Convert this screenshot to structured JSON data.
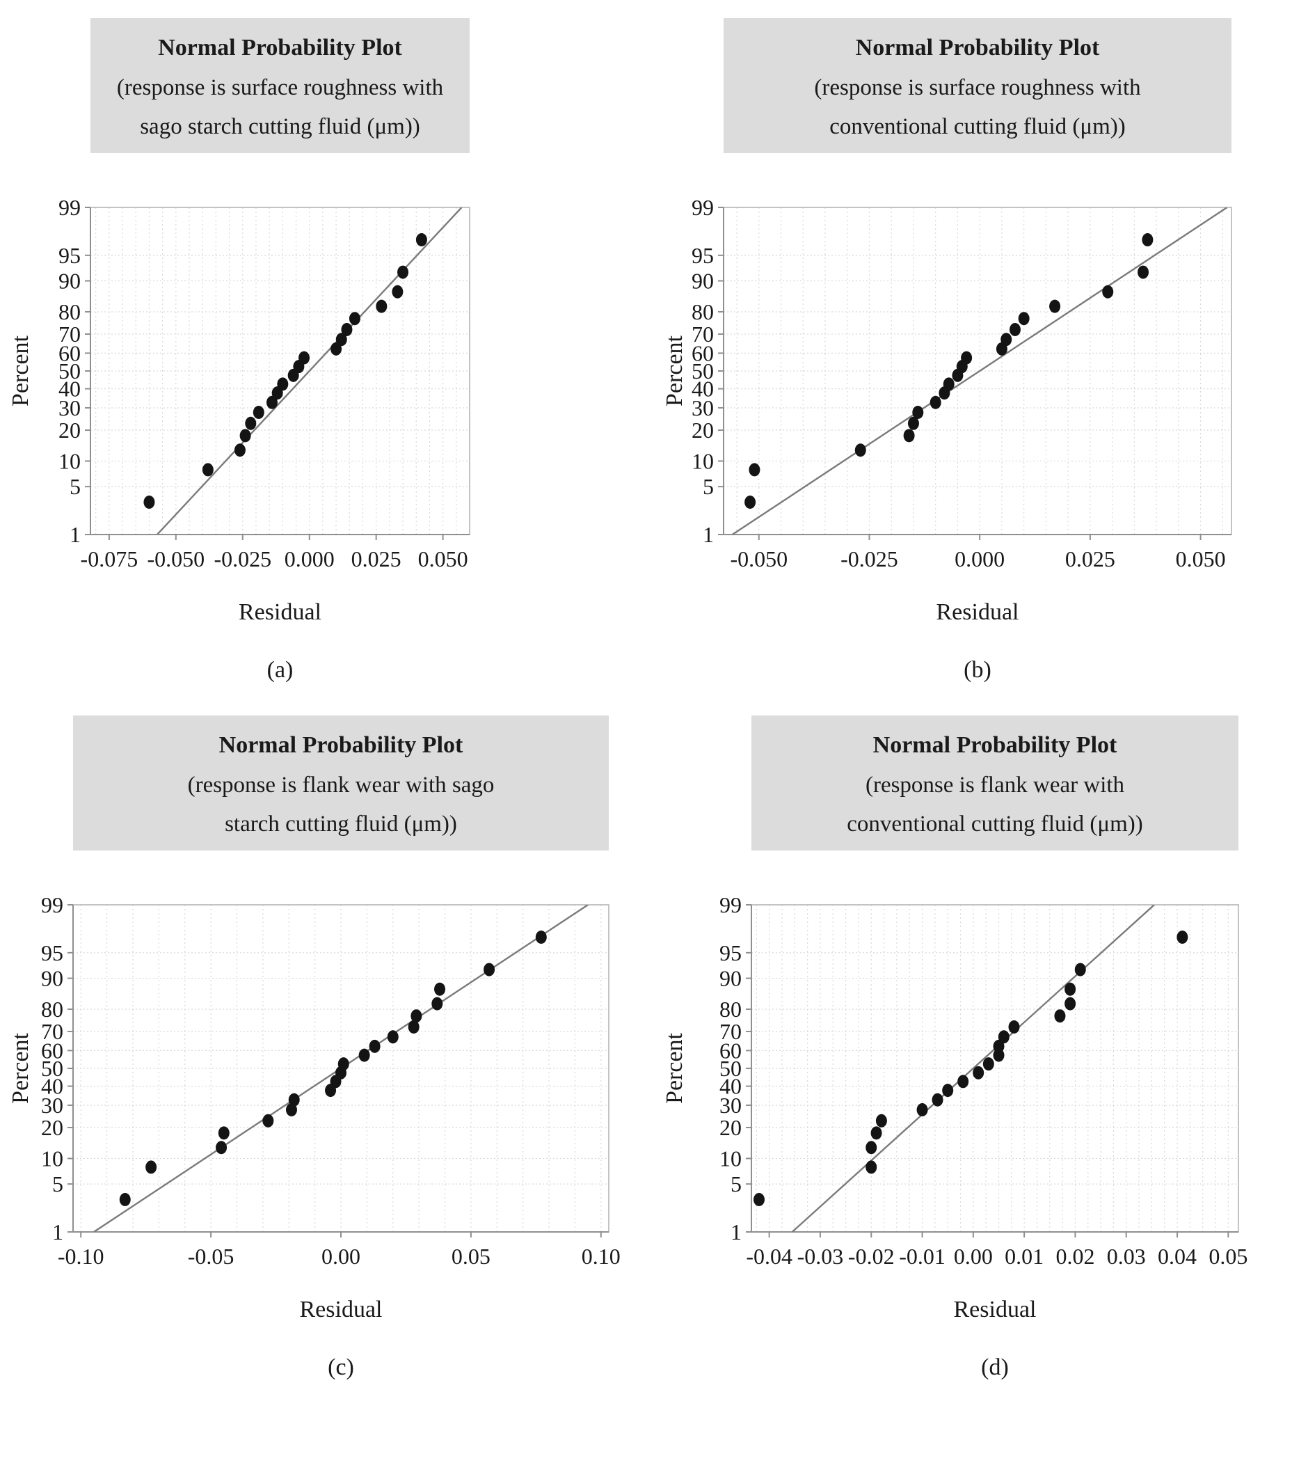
{
  "figure": {
    "type_note": "2x2 grid of Minitab-style normal probability plots of residuals",
    "ylabel": "Percent",
    "xlabel": "Residual",
    "colors": {
      "title_box_bg": "#dcdcdc",
      "plot_border": "#b5b5b5",
      "axis_line": "#8f8f8f",
      "gridline": "#d9d9d9",
      "fit_line": "#7a7a7a",
      "point": "#141414",
      "text": "#1a1a1a"
    }
  },
  "chart_data": [
    {
      "type": "scatter",
      "panel_label": "(a)",
      "title": "Normal Probability Plot",
      "subtitle": "(response is surface roughness with sago starch cutting fluid (μm))",
      "subtitle_lines": [
        "(response is surface roughness with",
        "sago starch cutting fluid (μm))"
      ],
      "xlabel": "Residual",
      "ylabel": "Percent",
      "y_scale": "normal-probability",
      "y_ticks": [
        1,
        5,
        10,
        20,
        30,
        40,
        50,
        60,
        70,
        80,
        90,
        95,
        99
      ],
      "xlim": [
        -0.082,
        0.06
      ],
      "x_ticks": [
        -0.075,
        -0.05,
        -0.025,
        0.0,
        0.025,
        0.05
      ],
      "x_tick_labels": [
        "-0.075",
        "-0.050",
        "-0.025",
        "0.000",
        "0.025",
        "0.050"
      ],
      "x_minor_step": 0.005,
      "grid": true,
      "legend": false,
      "fit_line": {
        "x_at_p1": -0.057,
        "x_at_p99": 0.057
      },
      "points": [
        [
          -0.06,
          3.1
        ],
        [
          -0.038,
          8.0
        ],
        [
          -0.026,
          13.0
        ],
        [
          -0.024,
          17.9
        ],
        [
          -0.022,
          22.8
        ],
        [
          -0.019,
          27.8
        ],
        [
          -0.014,
          32.7
        ],
        [
          -0.012,
          37.7
        ],
        [
          -0.01,
          42.6
        ],
        [
          -0.006,
          47.5
        ],
        [
          -0.004,
          52.5
        ],
        [
          -0.002,
          57.4
        ],
        [
          0.01,
          62.3
        ],
        [
          0.012,
          67.3
        ],
        [
          0.014,
          72.2
        ],
        [
          0.017,
          77.2
        ],
        [
          0.027,
          82.1
        ],
        [
          0.033,
          87.0
        ],
        [
          0.035,
          92.0
        ],
        [
          0.042,
          96.9
        ]
      ]
    },
    {
      "type": "scatter",
      "panel_label": "(b)",
      "title": "Normal Probability Plot",
      "subtitle": "(response is surface roughness with conventional cutting fluid (μm))",
      "subtitle_lines": [
        "(response is surface roughness with",
        "conventional cutting fluid (μm))"
      ],
      "xlabel": "Residual",
      "ylabel": "Percent",
      "y_scale": "normal-probability",
      "y_ticks": [
        1,
        5,
        10,
        20,
        30,
        40,
        50,
        60,
        70,
        80,
        90,
        95,
        99
      ],
      "xlim": [
        -0.058,
        0.057
      ],
      "x_ticks": [
        -0.05,
        -0.025,
        0.0,
        0.025,
        0.05
      ],
      "x_tick_labels": [
        "-0.050",
        "-0.025",
        "0.000",
        "0.025",
        "0.050"
      ],
      "x_minor_step": 0.005,
      "grid": true,
      "legend": false,
      "fit_line": {
        "x_at_p1": -0.056,
        "x_at_p99": 0.056
      },
      "points": [
        [
          -0.052,
          3.1
        ],
        [
          -0.051,
          8.0
        ],
        [
          -0.027,
          13.0
        ],
        [
          -0.016,
          17.9
        ],
        [
          -0.015,
          22.8
        ],
        [
          -0.014,
          27.8
        ],
        [
          -0.01,
          32.7
        ],
        [
          -0.008,
          37.7
        ],
        [
          -0.007,
          42.6
        ],
        [
          -0.005,
          47.5
        ],
        [
          -0.004,
          52.5
        ],
        [
          -0.003,
          57.4
        ],
        [
          0.005,
          62.3
        ],
        [
          0.006,
          67.3
        ],
        [
          0.008,
          72.2
        ],
        [
          0.01,
          77.2
        ],
        [
          0.017,
          82.1
        ],
        [
          0.029,
          87.0
        ],
        [
          0.037,
          92.0
        ],
        [
          0.038,
          96.9
        ]
      ]
    },
    {
      "type": "scatter",
      "panel_label": "(c)",
      "title": "Normal Probability Plot",
      "subtitle": "(response is flank wear with sago starch cutting fluid (μm))",
      "subtitle_lines": [
        "(response is flank wear with sago",
        "starch cutting fluid (μm))"
      ],
      "xlabel": "Residual",
      "ylabel": "Percent",
      "y_scale": "normal-probability",
      "y_ticks": [
        1,
        5,
        10,
        20,
        30,
        40,
        50,
        60,
        70,
        80,
        90,
        95,
        99
      ],
      "xlim": [
        -0.103,
        0.103
      ],
      "x_ticks": [
        -0.1,
        -0.05,
        0.0,
        0.05,
        0.1
      ],
      "x_tick_labels": [
        "-0.10",
        "-0.05",
        "0.00",
        "0.05",
        "0.10"
      ],
      "x_minor_step": 0.01,
      "grid": true,
      "legend": false,
      "fit_line": {
        "x_at_p1": -0.095,
        "x_at_p99": 0.095
      },
      "points": [
        [
          -0.083,
          3.1
        ],
        [
          -0.073,
          8.0
        ],
        [
          -0.046,
          13.0
        ],
        [
          -0.045,
          17.9
        ],
        [
          -0.028,
          22.8
        ],
        [
          -0.019,
          27.8
        ],
        [
          -0.018,
          32.7
        ],
        [
          -0.004,
          37.7
        ],
        [
          -0.002,
          42.6
        ],
        [
          0.0,
          47.5
        ],
        [
          0.001,
          52.5
        ],
        [
          0.009,
          57.4
        ],
        [
          0.013,
          62.3
        ],
        [
          0.02,
          67.3
        ],
        [
          0.028,
          72.2
        ],
        [
          0.029,
          77.2
        ],
        [
          0.037,
          82.1
        ],
        [
          0.038,
          87.0
        ],
        [
          0.057,
          92.0
        ],
        [
          0.077,
          96.9
        ]
      ]
    },
    {
      "type": "scatter",
      "panel_label": "(d)",
      "title": "Normal Probability Plot",
      "subtitle": "(response is flank wear with conventional cutting fluid (μm))",
      "subtitle_lines": [
        "(response is flank wear with",
        "conventional cutting fluid (μm))"
      ],
      "xlabel": "Residual",
      "ylabel": "Percent",
      "y_scale": "normal-probability",
      "y_ticks": [
        1,
        5,
        10,
        20,
        30,
        40,
        50,
        60,
        70,
        80,
        90,
        95,
        99
      ],
      "xlim": [
        -0.0435,
        0.052
      ],
      "x_ticks": [
        -0.04,
        -0.03,
        -0.02,
        -0.01,
        0.0,
        0.01,
        0.02,
        0.03,
        0.04,
        0.05
      ],
      "x_tick_labels": [
        "-0.04",
        "-0.03",
        "-0.02",
        "-0.01",
        "0.00",
        "0.01",
        "0.02",
        "0.03",
        "0.04",
        "0.05"
      ],
      "x_minor_step": 0.0025,
      "grid": true,
      "legend": false,
      "fit_line": {
        "x_at_p1": -0.0355,
        "x_at_p99": 0.0355
      },
      "points": [
        [
          -0.042,
          3.1
        ],
        [
          -0.02,
          8.0
        ],
        [
          -0.02,
          13.0
        ],
        [
          -0.019,
          17.9
        ],
        [
          -0.018,
          22.8
        ],
        [
          -0.01,
          27.8
        ],
        [
          -0.007,
          32.7
        ],
        [
          -0.005,
          37.7
        ],
        [
          -0.002,
          42.6
        ],
        [
          0.001,
          47.5
        ],
        [
          0.003,
          52.5
        ],
        [
          0.005,
          57.4
        ],
        [
          0.005,
          62.3
        ],
        [
          0.006,
          67.3
        ],
        [
          0.008,
          72.2
        ],
        [
          0.017,
          77.2
        ],
        [
          0.019,
          82.1
        ],
        [
          0.019,
          87.0
        ],
        [
          0.021,
          92.0
        ],
        [
          0.041,
          96.9
        ]
      ]
    }
  ]
}
